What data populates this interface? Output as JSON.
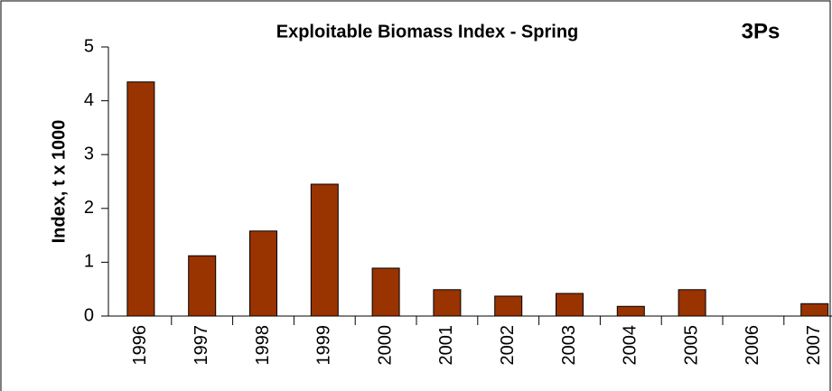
{
  "chart_data": {
    "type": "bar",
    "title": "Exploitable Biomass Index - Spring",
    "annotation": "3Ps",
    "y_label": "Index, t x 1000",
    "categories": [
      "1996",
      "1997",
      "1998",
      "1999",
      "2000",
      "2001",
      "2002",
      "2003",
      "2004",
      "2005",
      "2006",
      "2007"
    ],
    "values": [
      4.35,
      1.12,
      1.58,
      2.45,
      0.89,
      0.49,
      0.37,
      0.42,
      0.18,
      0.49,
      null,
      0.23
    ],
    "color": "#993300",
    "ylim": [
      0,
      5
    ],
    "yticks": [
      0,
      1,
      2,
      3,
      4,
      5
    ]
  }
}
